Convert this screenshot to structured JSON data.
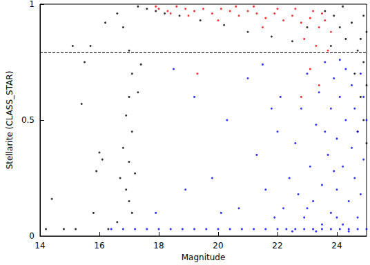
{
  "chart_data": {
    "type": "scatter",
    "x_label": "Magnitude",
    "y_label": "Stellarite (CLASS_STAR)",
    "xlim": [
      14,
      25
    ],
    "xticks": [
      14,
      16,
      18,
      20,
      22,
      24
    ],
    "ylim": [
      0,
      1
    ],
    "yticks": [
      0,
      0.5,
      1
    ],
    "grid": false,
    "marker": "circle",
    "reference_lines": [
      {
        "y": 0.79,
        "line_style": "dashed",
        "color": "#000000"
      }
    ],
    "series": [
      {
        "color": "#000000",
        "values": [
          [
            17.3,
            0.99
          ],
          [
            17.6,
            0.98
          ],
          [
            17.9,
            0.97
          ],
          [
            18.2,
            0.96
          ],
          [
            18.7,
            0.95
          ],
          [
            19.4,
            0.93
          ],
          [
            20.2,
            0.91
          ],
          [
            21.0,
            0.88
          ],
          [
            21.8,
            0.86
          ],
          [
            22.5,
            0.84
          ],
          [
            23.0,
            0.9
          ],
          [
            23.6,
            0.97
          ],
          [
            23.9,
            0.95
          ],
          [
            24.1,
            0.9
          ],
          [
            24.3,
            0.85
          ],
          [
            24.5,
            0.92
          ],
          [
            24.7,
            0.8
          ],
          [
            24.9,
            0.95
          ],
          [
            24.2,
            0.99
          ],
          [
            23.8,
            0.82
          ],
          [
            15.1,
            0.82
          ],
          [
            15.5,
            0.75
          ],
          [
            15.7,
            0.82
          ],
          [
            16.2,
            0.92
          ],
          [
            16.6,
            0.96
          ],
          [
            16.8,
            0.9
          ],
          [
            17.0,
            0.8
          ],
          [
            17.1,
            0.7
          ],
          [
            17.0,
            0.6
          ],
          [
            16.9,
            0.52
          ],
          [
            17.1,
            0.45
          ],
          [
            16.8,
            0.38
          ],
          [
            17.0,
            0.32
          ],
          [
            17.2,
            0.27
          ],
          [
            16.9,
            0.2
          ],
          [
            17.0,
            0.15
          ],
          [
            16.6,
            0.06
          ],
          [
            16.3,
            0.03
          ],
          [
            16.1,
            0.33
          ],
          [
            15.9,
            0.28
          ],
          [
            15.4,
            0.57
          ],
          [
            15.8,
            0.1
          ],
          [
            14.4,
            0.16
          ],
          [
            14.2,
            0.03
          ],
          [
            14.8,
            0.03
          ],
          [
            15.2,
            0.03
          ],
          [
            16.0,
            0.36
          ],
          [
            16.7,
            0.25
          ],
          [
            17.1,
            0.1
          ],
          [
            17.3,
            0.62
          ],
          [
            17.4,
            0.74
          ],
          [
            24.6,
            0.7
          ],
          [
            24.8,
            0.6
          ],
          [
            24.9,
            0.5
          ],
          [
            25,
            0.4
          ],
          [
            24.7,
            0.45
          ],
          [
            24.9,
            0.75
          ],
          [
            25,
            0.65
          ],
          [
            24.8,
            0.85
          ],
          [
            25,
            0.88
          ]
        ]
      },
      {
        "color": "#0000ff",
        "values": [
          [
            16.4,
            0.03
          ],
          [
            16.8,
            0.03
          ],
          [
            17.2,
            0.03
          ],
          [
            17.6,
            0.03
          ],
          [
            18,
            0.03
          ],
          [
            18.4,
            0.03
          ],
          [
            18.8,
            0.03
          ],
          [
            19.2,
            0.03
          ],
          [
            19.6,
            0.03
          ],
          [
            20,
            0.03
          ],
          [
            20.4,
            0.03
          ],
          [
            20.8,
            0.03
          ],
          [
            21.2,
            0.03
          ],
          [
            21.6,
            0.03
          ],
          [
            22,
            0.03
          ],
          [
            22.3,
            0.03
          ],
          [
            22.6,
            0.03
          ],
          [
            22.9,
            0.03
          ],
          [
            23.2,
            0.03
          ],
          [
            23.5,
            0.03
          ],
          [
            23.8,
            0.03
          ],
          [
            24.1,
            0.03
          ],
          [
            24.4,
            0.03
          ],
          [
            24.7,
            0.03
          ],
          [
            25,
            0.03
          ],
          [
            22.2,
            0.12
          ],
          [
            22.4,
            0.25
          ],
          [
            22.6,
            0.4
          ],
          [
            22.8,
            0.55
          ],
          [
            22.9,
            0.08
          ],
          [
            23.0,
            0.7
          ],
          [
            23.1,
            0.3
          ],
          [
            23.2,
            0.15
          ],
          [
            23.3,
            0.48
          ],
          [
            23.4,
            0.62
          ],
          [
            23.5,
            0.05
          ],
          [
            23.5,
            0.22
          ],
          [
            23.6,
            0.75
          ],
          [
            23.7,
            0.35
          ],
          [
            23.8,
            0.1
          ],
          [
            23.8,
            0.55
          ],
          [
            23.9,
            0.68
          ],
          [
            24.0,
            0.2
          ],
          [
            24.0,
            0.42
          ],
          [
            24.1,
            0.6
          ],
          [
            24.2,
            0.05
          ],
          [
            24.2,
            0.3
          ],
          [
            24.3,
            0.5
          ],
          [
            24.3,
            0.72
          ],
          [
            24.4,
            0.15
          ],
          [
            24.5,
            0.38
          ],
          [
            24.5,
            0.65
          ],
          [
            24.6,
            0.25
          ],
          [
            24.6,
            0.55
          ],
          [
            24.7,
            0.08
          ],
          [
            24.7,
            0.45
          ],
          [
            24.8,
            0.7
          ],
          [
            24.8,
            0.18
          ],
          [
            24.9,
            0.33
          ],
          [
            24.9,
            0.6
          ],
          [
            25,
            0.5
          ],
          [
            22.5,
            0.02
          ],
          [
            23.0,
            0.12
          ],
          [
            23.3,
            0.02
          ],
          [
            24.0,
            0.08
          ],
          [
            24.4,
            0.02
          ],
          [
            23.9,
            0.28
          ],
          [
            22.7,
            0.18
          ],
          [
            23.6,
            0.45
          ],
          [
            24.1,
            0.76
          ],
          [
            18.5,
            0.72
          ],
          [
            19.2,
            0.6
          ],
          [
            19.8,
            0.25
          ],
          [
            20.3,
            0.5
          ],
          [
            20.7,
            0.12
          ],
          [
            21.0,
            0.68
          ],
          [
            21.3,
            0.35
          ],
          [
            21.6,
            0.2
          ],
          [
            21.8,
            0.55
          ],
          [
            21.9,
            0.08
          ],
          [
            20.1,
            0.1
          ],
          [
            18.9,
            0.2
          ],
          [
            17.9,
            0.1
          ],
          [
            21.5,
            0.74
          ],
          [
            22.0,
            0.45
          ],
          [
            22.1,
            0.6
          ]
        ]
      },
      {
        "color": "#ff0000",
        "values": [
          [
            18.0,
            0.98
          ],
          [
            18.3,
            0.97
          ],
          [
            18.6,
            0.99
          ],
          [
            18.9,
            0.98
          ],
          [
            19.2,
            0.97
          ],
          [
            19.5,
            0.98
          ],
          [
            19.8,
            0.96
          ],
          [
            20.1,
            0.98
          ],
          [
            20.4,
            0.97
          ],
          [
            20.7,
            0.95
          ],
          [
            21.0,
            0.97
          ],
          [
            21.3,
            0.96
          ],
          [
            21.6,
            0.94
          ],
          [
            21.9,
            0.96
          ],
          [
            22.2,
            0.93
          ],
          [
            22.5,
            0.95
          ],
          [
            22.8,
            0.92
          ],
          [
            23.1,
            0.94
          ],
          [
            23.4,
            0.9
          ],
          [
            23.6,
            0.93
          ],
          [
            23.8,
            0.88
          ],
          [
            22.0,
            0.98
          ],
          [
            22.6,
            0.98
          ],
          [
            23.2,
            0.97
          ],
          [
            23.5,
            0.96
          ],
          [
            20.0,
            0.93
          ],
          [
            19.0,
            0.95
          ],
          [
            21.5,
            0.9
          ],
          [
            22.9,
            0.85
          ],
          [
            23.3,
            0.82
          ],
          [
            23.7,
            0.8
          ],
          [
            18.4,
            0.96
          ],
          [
            17.9,
            0.99
          ],
          [
            20.6,
            0.99
          ],
          [
            21.2,
            0.99
          ],
          [
            19.3,
            0.7
          ],
          [
            22.8,
            0.6
          ],
          [
            23.4,
            0.65
          ],
          [
            23.1,
            0.72
          ]
        ]
      }
    ]
  }
}
